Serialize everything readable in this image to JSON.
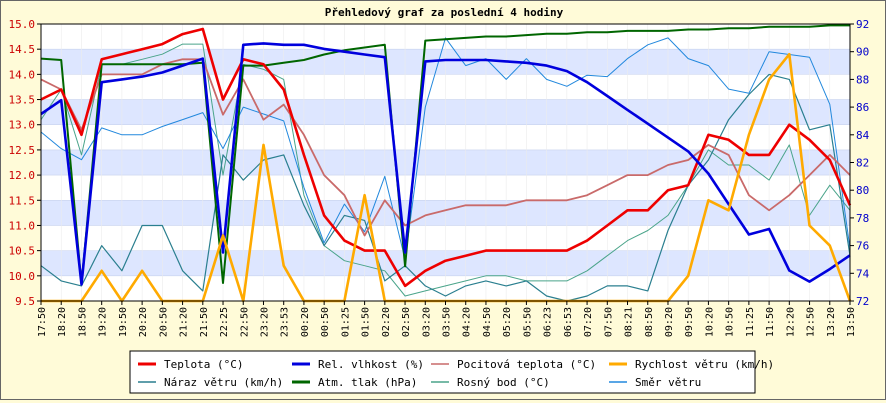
{
  "chart_data": {
    "type": "line",
    "title": "Přehledový graf za poslední 4 hodiny",
    "colors": {
      "left_axis": "#cc0000",
      "right_axis": "#0000cc",
      "band": "#dde6ff",
      "background": "#fffbd8",
      "plot_bg": "#ffffff"
    },
    "y_left": {
      "min": 9.5,
      "max": 15.0,
      "ticks": [
        "9.5",
        "10.0",
        "10.5",
        "11.0",
        "11.5",
        "12.0",
        "12.5",
        "13.0",
        "13.5",
        "14.0",
        "14.5",
        "15.0"
      ]
    },
    "y_right": {
      "min": 72,
      "max": 92,
      "ticks": [
        "72",
        "74",
        "76",
        "78",
        "80",
        "82",
        "84",
        "86",
        "88",
        "90",
        "92"
      ]
    },
    "x_labels": [
      "17:50",
      "18:20",
      "18:50",
      "19:20",
      "19:50",
      "20:20",
      "20:50",
      "21:20",
      "21:50",
      "22:25",
      "22:50",
      "23:20",
      "23:53",
      "00:20",
      "00:50",
      "01:25",
      "01:50",
      "02:20",
      "02:50",
      "03:20",
      "03:50",
      "04:20",
      "04:50",
      "05:20",
      "05:50",
      "06:23",
      "06:53",
      "07:20",
      "07:50",
      "08:21",
      "08:50",
      "09:20",
      "09:50",
      "10:20",
      "10:50",
      "11:25",
      "11:50",
      "12:20",
      "12:50",
      "13:20",
      "13:50"
    ],
    "series": [
      {
        "name": "Teplota (°C)",
        "axis": "left",
        "color": "#ee0000",
        "width": 2.6,
        "values": [
          13.5,
          13.7,
          12.8,
          14.3,
          14.4,
          14.5,
          14.6,
          14.8,
          14.9,
          13.5,
          14.3,
          14.2,
          13.7,
          12.4,
          11.2,
          10.7,
          10.5,
          10.5,
          9.8,
          10.1,
          10.3,
          10.4,
          10.5,
          10.5,
          10.5,
          10.5,
          10.5,
          10.7,
          11.0,
          11.3,
          11.3,
          11.7,
          11.8,
          12.8,
          12.7,
          12.4,
          12.4,
          13.0,
          12.7,
          12.3,
          11.4
        ]
      },
      {
        "name": "Rel. vlhkost (%)",
        "axis": "right",
        "color": "#0000dd",
        "width": 2.6,
        "values": [
          85.5,
          86.5,
          73.2,
          87.8,
          88.0,
          88.2,
          88.5,
          89.0,
          89.5,
          75.5,
          90.5,
          90.6,
          90.5,
          90.5,
          90.2,
          90.0,
          89.8,
          89.6,
          75.5,
          89.3,
          89.4,
          89.4,
          89.4,
          89.3,
          89.2,
          89.0,
          88.6,
          87.8,
          86.8,
          85.8,
          84.8,
          83.8,
          82.8,
          81.2,
          79.0,
          76.8,
          77.2,
          74.2,
          73.4,
          74.3,
          75.3
        ]
      },
      {
        "name": "Pocitová teplota (°C)",
        "axis": "left",
        "color": "#c96a6a",
        "width": 1.8,
        "values": [
          13.9,
          13.7,
          12.9,
          14.0,
          14.0,
          14.0,
          14.2,
          14.3,
          14.3,
          13.2,
          13.9,
          13.1,
          13.4,
          12.8,
          12.0,
          11.6,
          10.8,
          11.5,
          11.0,
          11.2,
          11.3,
          11.4,
          11.4,
          11.4,
          11.5,
          11.5,
          11.5,
          11.6,
          11.8,
          12.0,
          12.0,
          12.2,
          12.3,
          12.6,
          12.4,
          11.6,
          11.3,
          11.6,
          12.0,
          12.4,
          12.0
        ]
      },
      {
        "name": "Rychlost větru (km/h)",
        "axis": "left",
        "color": "#ffaa00",
        "width": 2.6,
        "values": [
          9.5,
          9.5,
          9.5,
          10.1,
          9.5,
          10.1,
          9.5,
          9.5,
          9.5,
          10.8,
          9.5,
          12.6,
          10.2,
          9.5,
          9.5,
          9.5,
          11.6,
          9.5,
          9.5,
          9.5,
          9.5,
          9.5,
          9.5,
          9.5,
          9.5,
          9.5,
          9.5,
          9.5,
          9.5,
          9.5,
          9.5,
          9.5,
          10.0,
          11.5,
          11.3,
          12.8,
          13.9,
          14.4,
          11.0,
          10.6,
          9.5
        ]
      },
      {
        "name": "Náraz větru (km/h)",
        "axis": "left",
        "color": "#2a7f8f",
        "width": 1.2,
        "values": [
          10.2,
          9.9,
          9.8,
          10.6,
          10.1,
          11.0,
          11.0,
          10.1,
          9.7,
          12.4,
          11.9,
          12.3,
          12.4,
          11.4,
          10.6,
          11.2,
          11.1,
          9.9,
          10.2,
          9.8,
          9.6,
          9.8,
          9.9,
          9.8,
          9.9,
          9.6,
          9.5,
          9.6,
          9.8,
          9.8,
          9.7,
          10.9,
          11.8,
          12.3,
          13.1,
          13.6,
          14.0,
          13.9,
          12.9,
          13.0,
          10.4
        ]
      },
      {
        "name": "Atm. tlak (hPa)",
        "axis": "right",
        "color": "#006600",
        "width": 2.0,
        "values": [
          89.5,
          89.4,
          73.2,
          89.1,
          89.1,
          89.1,
          89.1,
          89.1,
          89.2,
          73.3,
          89.0,
          89.0,
          89.2,
          89.4,
          89.8,
          90.1,
          90.3,
          90.5,
          74.5,
          90.8,
          90.9,
          91.0,
          91.1,
          91.1,
          91.2,
          91.3,
          91.3,
          91.4,
          91.4,
          91.5,
          91.5,
          91.5,
          91.6,
          91.6,
          91.7,
          91.7,
          91.8,
          91.8,
          91.8,
          91.9,
          91.9
        ]
      },
      {
        "name": "Rosný bod (°C)",
        "axis": "left",
        "color": "#4aa48a",
        "width": 1.0,
        "values": [
          13.1,
          13.7,
          12.4,
          14.2,
          14.2,
          14.3,
          14.4,
          14.6,
          14.6,
          12.0,
          14.2,
          14.1,
          13.9,
          11.6,
          10.6,
          10.3,
          10.2,
          10.1,
          9.6,
          9.7,
          9.8,
          9.9,
          10.0,
          10.0,
          9.9,
          9.9,
          9.9,
          10.1,
          10.4,
          10.7,
          10.9,
          11.2,
          11.8,
          12.5,
          12.2,
          12.2,
          11.9,
          12.6,
          11.2,
          11.8,
          11.3
        ]
      },
      {
        "name": "Směr větru",
        "axis": "right",
        "color": "#2288dd",
        "width": 1.0,
        "values": [
          84.2,
          83.0,
          82.2,
          84.5,
          84.0,
          84.0,
          84.6,
          85.1,
          85.6,
          83.0,
          86.0,
          85.5,
          85.0,
          80.2,
          76.2,
          79.0,
          77.0,
          81.0,
          75.0,
          86.0,
          91.0,
          89.0,
          89.5,
          88.0,
          89.5,
          88.0,
          87.5,
          88.3,
          88.2,
          89.5,
          90.5,
          91.0,
          89.5,
          89.0,
          87.3,
          87.0,
          90.0,
          89.8,
          89.6,
          86.2,
          75.8
        ]
      }
    ]
  }
}
